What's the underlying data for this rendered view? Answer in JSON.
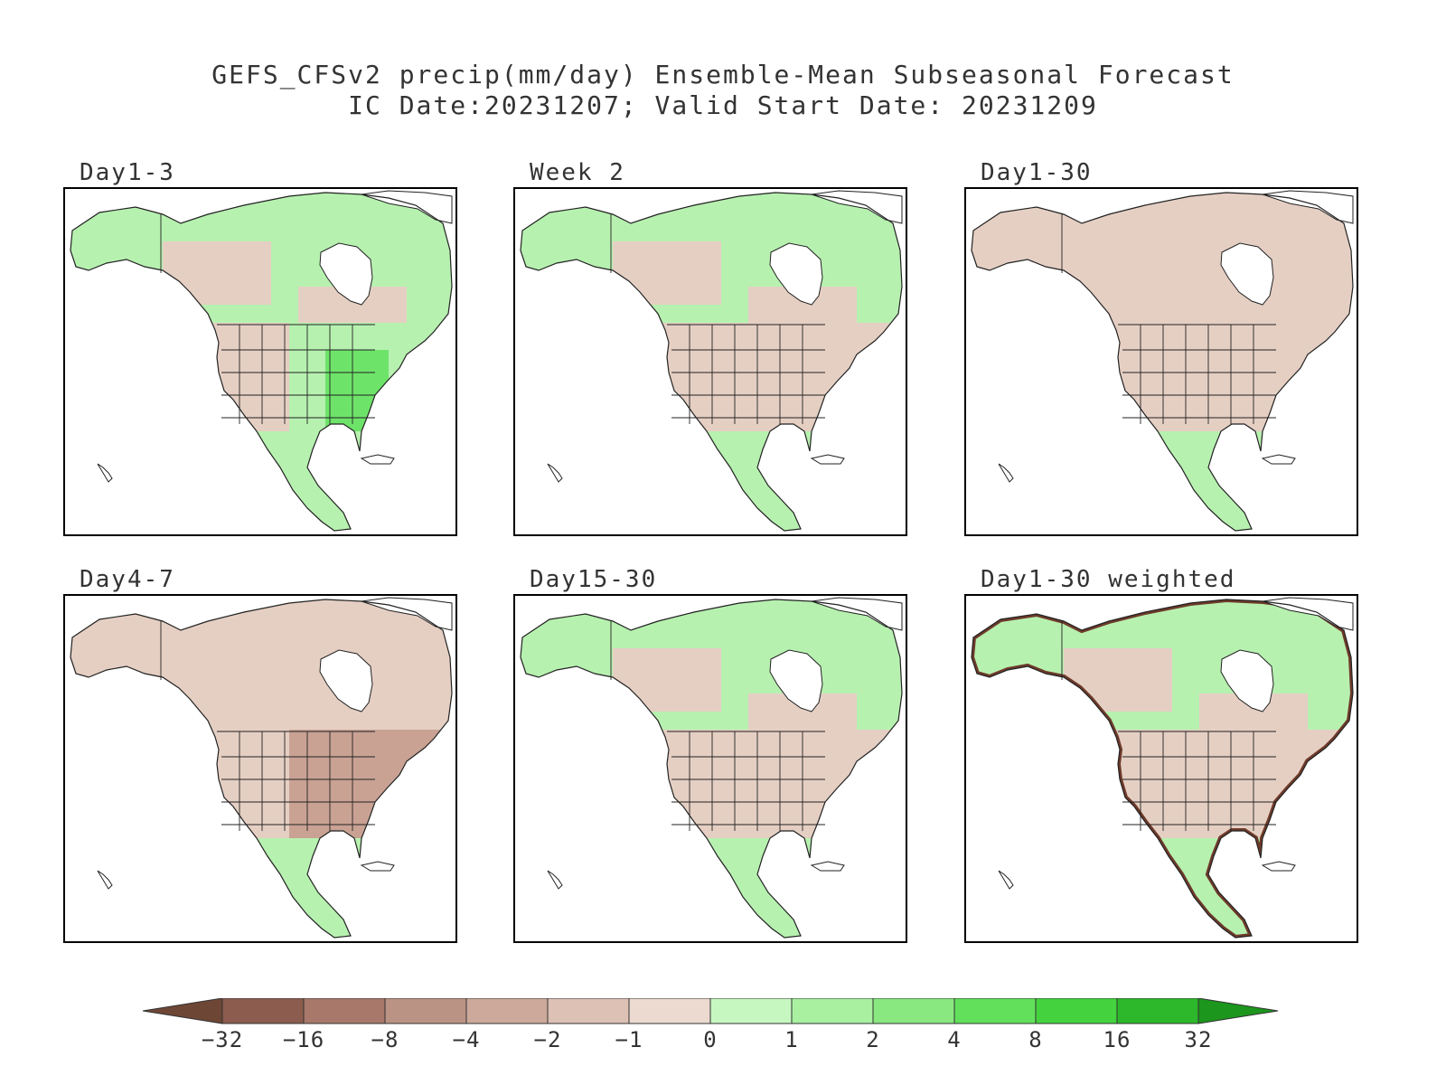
{
  "title": {
    "line1": "GEFS_CFSv2 precip(mm/day) Ensemble-Mean Subseasonal Forecast",
    "line2": "IC Date:20231207; Valid Start Date: 20231209"
  },
  "panels": [
    {
      "label": "Day1-3",
      "regime": {
        "west": "dry",
        "east": "wet",
        "north": "mixed"
      }
    },
    {
      "label": "Week 2",
      "regime": {
        "west": "dry",
        "east": "dry",
        "north": "mixed"
      }
    },
    {
      "label": "Day1-30",
      "regime": {
        "west": "dry",
        "east": "dry",
        "north": "dry"
      }
    },
    {
      "label": "Day4-7",
      "regime": {
        "west": "dry",
        "east": "verydry",
        "north": "dry"
      }
    },
    {
      "label": "Day15-30",
      "regime": {
        "west": "dry",
        "east": "mixed",
        "north": "mixed"
      }
    },
    {
      "label": "Day1-30 weighted",
      "regime": {
        "west": "dry",
        "east": "dry",
        "north": "mixed",
        "coast": "verydry"
      }
    }
  ],
  "colorbar": {
    "labels": [
      "−32",
      "−16",
      "−8",
      "−4",
      "−2",
      "−1",
      "0",
      "1",
      "2",
      "4",
      "8",
      "16",
      "32"
    ],
    "colors": [
      "#6e4636",
      "#8c5c4e",
      "#a8786a",
      "#bb9384",
      "#cca99b",
      "#ddc1b5",
      "#ecdad0",
      "#c6f7c0",
      "#a9f0a1",
      "#8ae881",
      "#62e05b",
      "#44d33f",
      "#2cb82a",
      "#1c961c"
    ]
  },
  "map_colors": {
    "dry": "#e5cfc3",
    "verydry": "#c9a294",
    "wet": "#b7f1b0",
    "strongwet": "#6ee36a",
    "ocean": "#ffffff",
    "outline": "#222222"
  }
}
